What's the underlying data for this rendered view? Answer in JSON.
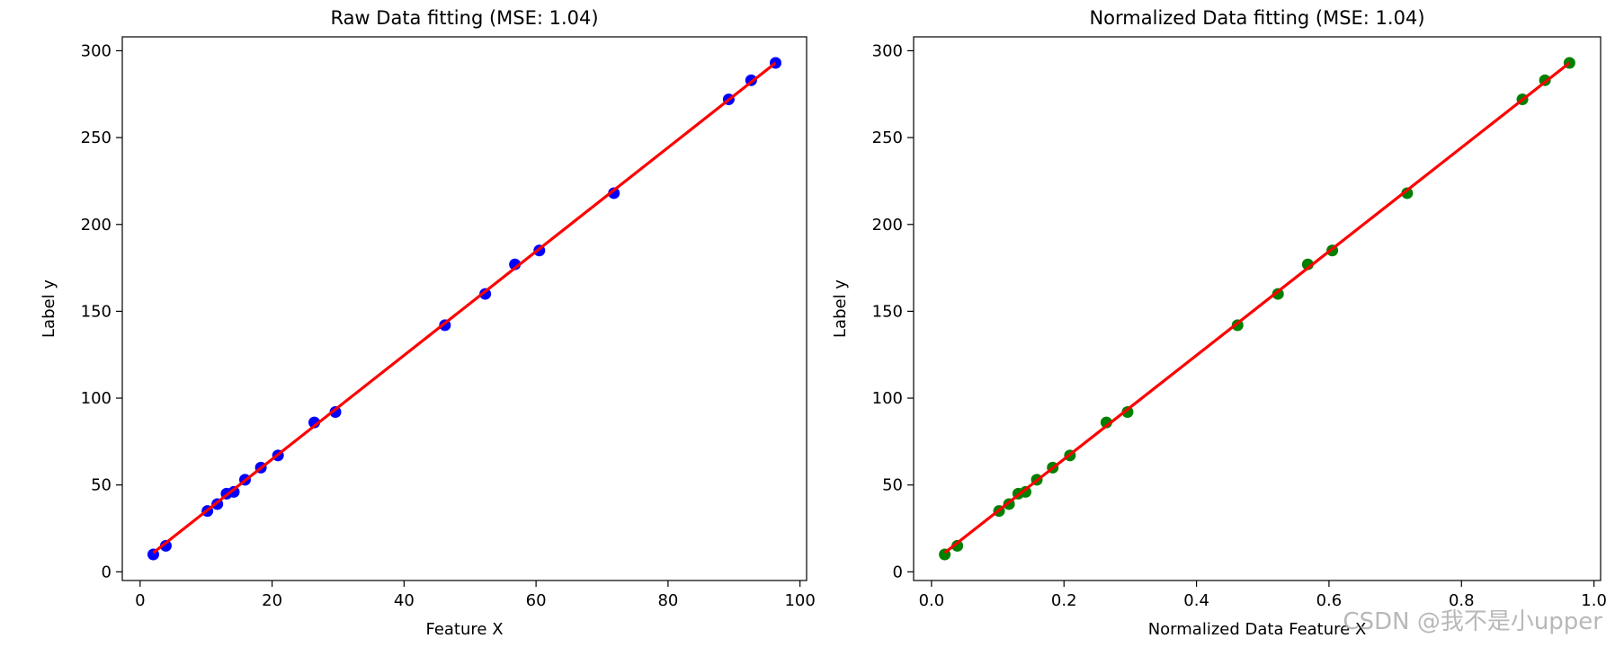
{
  "chart_data": [
    {
      "type": "scatter",
      "title": "Raw Data fitting (MSE: 1.04)",
      "xlabel": "Feature X",
      "ylabel": "Label y",
      "xlim": [
        -2.7,
        101
      ],
      "ylim": [
        -5,
        308
      ],
      "xticks": [
        0,
        20,
        40,
        60,
        80,
        100
      ],
      "xtick_labels": [
        "0",
        "20",
        "40",
        "60",
        "80",
        "100"
      ],
      "yticks": [
        0,
        50,
        100,
        150,
        200,
        250,
        300
      ],
      "ytick_labels": [
        "0",
        "50",
        "100",
        "150",
        "200",
        "250",
        "300"
      ],
      "grid": false,
      "series": [
        {
          "kind": "points",
          "color": "#0000ff",
          "x": [
            2.0,
            3.9,
            10.2,
            11.7,
            13.1,
            14.2,
            15.9,
            18.3,
            20.9,
            26.4,
            29.6,
            46.2,
            52.3,
            56.8,
            60.5,
            71.8,
            89.2,
            92.6,
            96.3
          ],
          "y": [
            10,
            15,
            35,
            39,
            45,
            46,
            53,
            60,
            67,
            86,
            92,
            142,
            160,
            177,
            185,
            218,
            272,
            283,
            293
          ]
        },
        {
          "kind": "line",
          "color": "#ff0000",
          "x": [
            2.0,
            96.3
          ],
          "y": [
            11,
            293
          ]
        }
      ]
    },
    {
      "type": "scatter",
      "title": "Normalized Data fitting (MSE: 1.04)",
      "xlabel": "Normalized Data Feature X",
      "ylabel": "Label y",
      "xlim": [
        -0.027,
        1.01
      ],
      "ylim": [
        -5,
        308
      ],
      "xticks": [
        0.0,
        0.2,
        0.4,
        0.6,
        0.8,
        1.0
      ],
      "xtick_labels": [
        "0.0",
        "0.2",
        "0.4",
        "0.6",
        "0.8",
        "1.0"
      ],
      "yticks": [
        0,
        50,
        100,
        150,
        200,
        250,
        300
      ],
      "ytick_labels": [
        "0",
        "50",
        "100",
        "150",
        "200",
        "250",
        "300"
      ],
      "grid": false,
      "series": [
        {
          "kind": "points",
          "color": "#008000",
          "x": [
            0.02,
            0.039,
            0.102,
            0.117,
            0.131,
            0.142,
            0.159,
            0.183,
            0.209,
            0.264,
            0.296,
            0.462,
            0.523,
            0.568,
            0.605,
            0.718,
            0.892,
            0.926,
            0.963
          ],
          "y": [
            10,
            15,
            35,
            39,
            45,
            46,
            53,
            60,
            67,
            86,
            92,
            142,
            160,
            177,
            185,
            218,
            272,
            283,
            293
          ]
        },
        {
          "kind": "line",
          "color": "#ff0000",
          "x": [
            0.02,
            0.963
          ],
          "y": [
            11,
            293
          ]
        }
      ]
    }
  ],
  "watermark": "CSDN @我不是小upper"
}
